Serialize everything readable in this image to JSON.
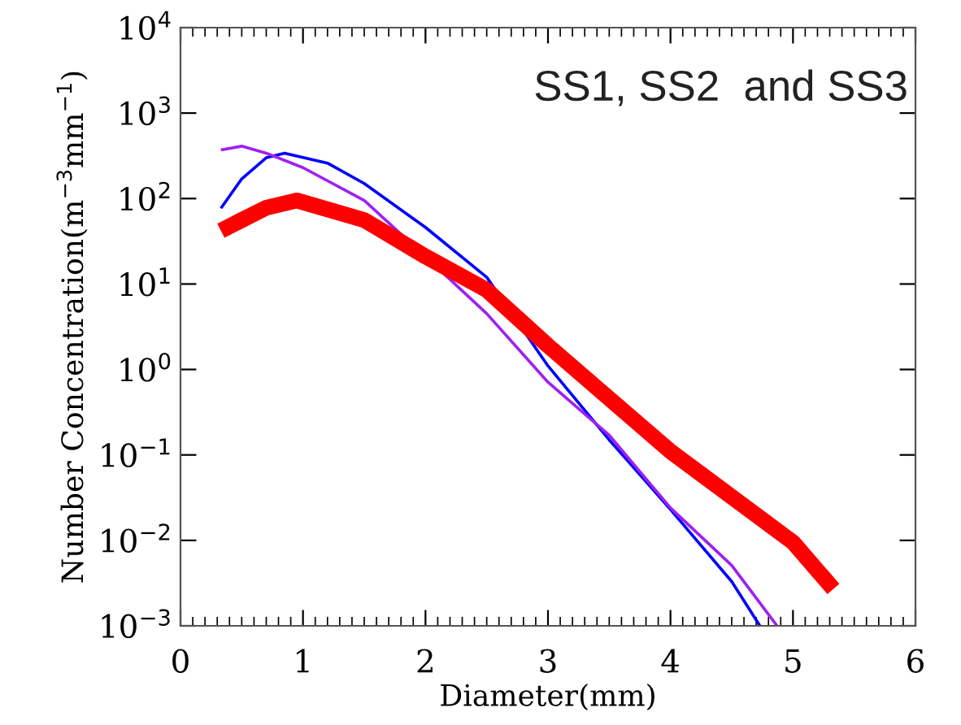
{
  "chart_data": {
    "type": "line",
    "xlabel": "Diameter(mm)",
    "ylabel": "Number Concentration(m$^{−3}$mm$^{−1}$)",
    "annotations": [
      "SS1, SS2  and SS3"
    ],
    "log": "y",
    "grid": false,
    "marker": "none",
    "line_style": "solid",
    "xlim": [
      0,
      6
    ],
    "xticks": [
      0,
      1,
      2,
      3,
      4,
      5,
      6
    ],
    "ylim": [
      0.001,
      10000
    ],
    "yticks": [
      {
        "value": 0.001,
        "label": "10$^{−3}$"
      },
      {
        "value": 0.01,
        "label": "10$^{−2}$"
      },
      {
        "value": 0.1,
        "label": "10$^{−1}$"
      },
      {
        "value": 1,
        "label": "10$^{0}$"
      },
      {
        "value": 10,
        "label": "10$^{1}$"
      },
      {
        "value": 100,
        "label": "10$^{2}$"
      },
      {
        "value": 1000,
        "label": "10$^{3}$"
      },
      {
        "value": 10000,
        "label": "10$^{4}$"
      }
    ],
    "series": [
      {
        "color": "#0000ff",
        "x": [
          0.33,
          0.5,
          0.7,
          0.85,
          1.2,
          1.5,
          2,
          2.5,
          3,
          3.5,
          4,
          4.5,
          4.73
        ],
        "values": [
          77,
          170,
          300,
          340,
          260,
          150,
          46,
          12,
          1.1,
          0.15,
          0.023,
          0.0033,
          0.001
        ]
      },
      {
        "color": "#a020f0",
        "x": [
          0.33,
          0.5,
          0.7,
          1,
          1.5,
          2,
          2.5,
          3,
          3.5,
          4,
          4.5,
          4.87
        ],
        "values": [
          370,
          410,
          340,
          230,
          95,
          21,
          4.5,
          0.71,
          0.17,
          0.024,
          0.0051,
          0.001
        ]
      },
      {
        "color": "#ff0000",
        "x": [
          0.33,
          0.5,
          0.7,
          0.95,
          1.5,
          2,
          2.5,
          3,
          4,
          5,
          5.33
        ],
        "values": [
          42,
          56,
          78,
          95,
          56,
          21,
          8.5,
          1.9,
          0.11,
          0.0095,
          0.0027
        ]
      }
    ]
  }
}
